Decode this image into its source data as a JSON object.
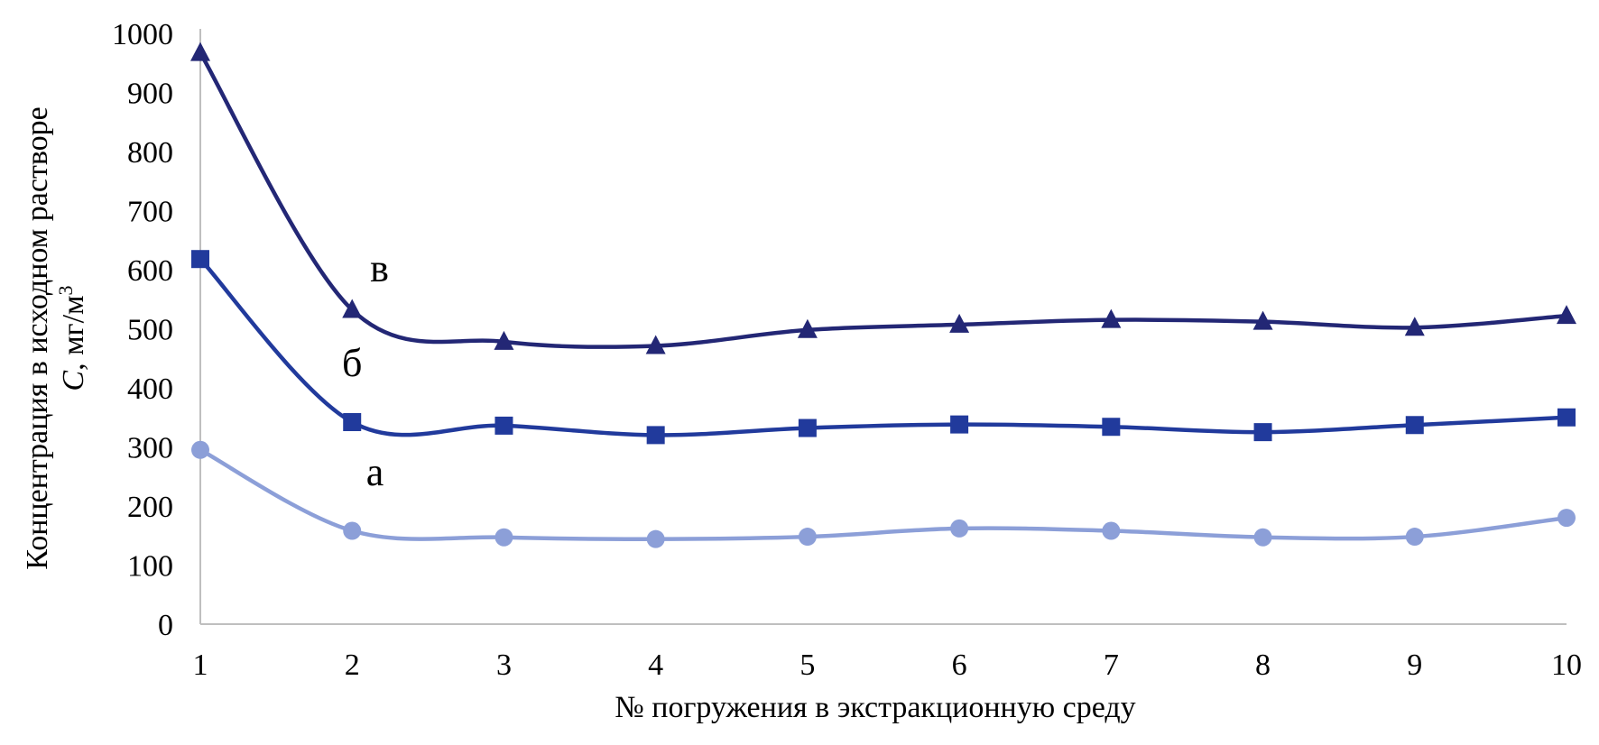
{
  "chart_data": {
    "type": "line",
    "title": "",
    "xlabel": "№ погружения в экстракционную среду",
    "ylabel_line1": "Концентрация в исходном растворе",
    "ylabel_line2_var": "C",
    "ylabel_line2_unit": ", мг/м",
    "ylabel_line2_sup": "3",
    "x": [
      1,
      2,
      3,
      4,
      5,
      6,
      7,
      8,
      9,
      10
    ],
    "x_tick_labels": [
      "1",
      "2",
      "3",
      "4",
      "5",
      "6",
      "7",
      "8",
      "9",
      "10"
    ],
    "ylim": [
      0,
      1000
    ],
    "y_ticks": [
      0,
      100,
      200,
      300,
      400,
      500,
      600,
      700,
      800,
      900,
      1000
    ],
    "grid": false,
    "legend": "none",
    "series": [
      {
        "label": "а",
        "marker": "circle",
        "color": "#8c9fd8",
        "values": [
          295,
          158,
          147,
          144,
          148,
          162,
          158,
          147,
          148,
          180
        ]
      },
      {
        "label": "б",
        "marker": "square",
        "color": "#213a9c",
        "values": [
          618,
          342,
          336,
          320,
          332,
          338,
          334,
          325,
          337,
          350
        ]
      },
      {
        "label": "в",
        "marker": "triangle",
        "color": "#232775",
        "values": [
          967,
          532,
          478,
          471,
          498,
          507,
          515,
          512,
          502,
          522
        ]
      }
    ]
  }
}
